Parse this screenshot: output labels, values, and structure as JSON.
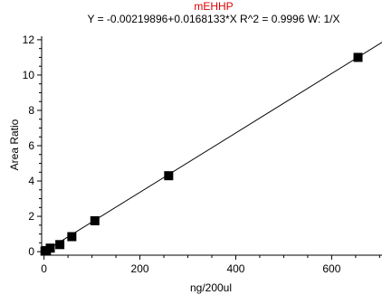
{
  "chart_data": {
    "type": "scatter",
    "title": "mEHHP",
    "subtitle": "Y = -0.00219896+0.0168133*X    R^2 = 0.9996    W: 1/X",
    "xlabel": "ng/200ul",
    "ylabel": "Area Ratio",
    "xlim": [
      -5,
      705
    ],
    "ylim": [
      -0.2,
      12.2
    ],
    "xticks": [
      0,
      200,
      400,
      600
    ],
    "yticks": [
      0,
      2,
      4,
      6,
      8,
      10,
      12
    ],
    "grid": false,
    "series": [
      {
        "points": [
          {
            "x": 2,
            "y": 0.03
          },
          {
            "x": 5,
            "y": 0.06
          },
          {
            "x": 13,
            "y": 0.2
          },
          {
            "x": 33,
            "y": 0.4
          },
          {
            "x": 58,
            "y": 0.85
          },
          {
            "x": 106,
            "y": 1.75
          },
          {
            "x": 260,
            "y": 4.3
          },
          {
            "x": 655,
            "y": 11.0
          }
        ]
      }
    ],
    "fit": {
      "intercept": -0.00219896,
      "slope": 0.0168133,
      "x_range": [
        0,
        705
      ]
    }
  }
}
